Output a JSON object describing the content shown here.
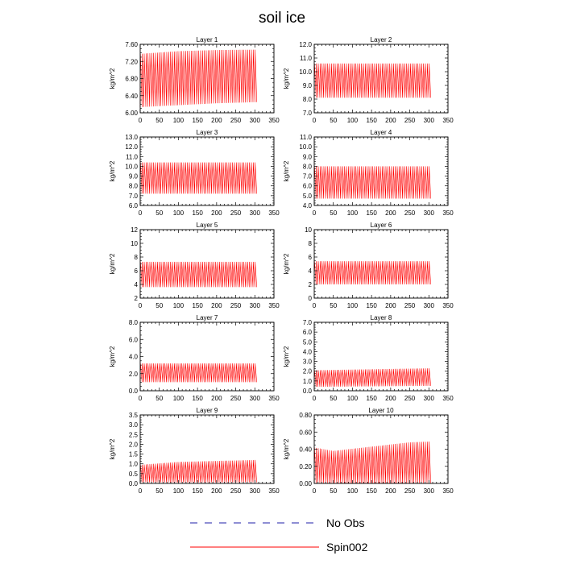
{
  "title": "soil ice",
  "colors": {
    "no_obs": "#1f1fa8",
    "spin": "#ff0000",
    "axis": "#000000"
  },
  "legend": [
    {
      "label": "No Obs",
      "style": "dashed",
      "color": "#1f1fa8"
    },
    {
      "label": "Spin002",
      "style": "solid",
      "color": "#ff0000"
    }
  ],
  "chart_data": [
    {
      "type": "line",
      "title": "Layer 1",
      "ylabel": "kg/m^2",
      "xlim": [
        0,
        350
      ],
      "ylim": [
        6.0,
        7.8
      ],
      "xticks": [
        "0",
        "50",
        "100",
        "150",
        "200",
        "250",
        "300",
        "350"
      ],
      "yticks": [
        "6.00",
        "6.40",
        "6.80",
        "7.20",
        "7.60"
      ],
      "series": [
        {
          "name": "Spin002",
          "x_start": 0,
          "x_end": 305,
          "cycles": 62,
          "upper": [
            [
              0,
              7.55
            ],
            [
              100,
              7.62
            ],
            [
              200,
              7.65
            ],
            [
              305,
              7.66
            ]
          ],
          "lower": [
            [
              0,
              6.15
            ],
            [
              100,
              6.2
            ],
            [
              200,
              6.25
            ],
            [
              305,
              6.28
            ]
          ]
        }
      ]
    },
    {
      "type": "line",
      "title": "Layer 2",
      "ylabel": "kg/m^2",
      "xlim": [
        0,
        350
      ],
      "ylim": [
        7.0,
        12.0
      ],
      "xticks": [
        "0",
        "50",
        "100",
        "150",
        "200",
        "250",
        "300",
        "350"
      ],
      "yticks": [
        "7.0",
        "8.0",
        "9.0",
        "10.0",
        "11.0",
        "12.0"
      ],
      "series": [
        {
          "name": "Spin002",
          "x_start": 0,
          "x_end": 305,
          "cycles": 62,
          "upper": [
            [
              0,
              10.6
            ],
            [
              305,
              10.6
            ]
          ],
          "lower": [
            [
              0,
              8.1
            ],
            [
              305,
              8.1
            ]
          ]
        }
      ]
    },
    {
      "type": "line",
      "title": "Layer 3",
      "ylabel": "kg/m^2",
      "xlim": [
        0,
        350
      ],
      "ylim": [
        6.0,
        13.0
      ],
      "xticks": [
        "0",
        "50",
        "100",
        "150",
        "200",
        "250",
        "300",
        "350"
      ],
      "yticks": [
        "6.0",
        "7.0",
        "8.0",
        "9.0",
        "10.0",
        "11.0",
        "12.0",
        "13.0"
      ],
      "series": [
        {
          "name": "Spin002",
          "x_start": 0,
          "x_end": 305,
          "cycles": 62,
          "upper": [
            [
              0,
              10.4
            ],
            [
              305,
              10.4
            ]
          ],
          "lower": [
            [
              0,
              7.2
            ],
            [
              305,
              7.2
            ]
          ]
        }
      ]
    },
    {
      "type": "line",
      "title": "Layer 4",
      "ylabel": "kg/m^2",
      "xlim": [
        0,
        350
      ],
      "ylim": [
        4.0,
        11.0
      ],
      "xticks": [
        "0",
        "50",
        "100",
        "150",
        "200",
        "250",
        "300",
        "350"
      ],
      "yticks": [
        "4.0",
        "5.0",
        "6.0",
        "7.0",
        "8.0",
        "9.0",
        "10.0",
        "11.0"
      ],
      "series": [
        {
          "name": "Spin002",
          "x_start": 0,
          "x_end": 305,
          "cycles": 62,
          "upper": [
            [
              0,
              8.0
            ],
            [
              305,
              8.0
            ]
          ],
          "lower": [
            [
              0,
              4.7
            ],
            [
              305,
              4.7
            ]
          ]
        }
      ]
    },
    {
      "type": "line",
      "title": "Layer 5",
      "ylabel": "kg/m^2",
      "xlim": [
        0,
        350
      ],
      "ylim": [
        2,
        12
      ],
      "xticks": [
        "0",
        "50",
        "100",
        "150",
        "200",
        "250",
        "300",
        "350"
      ],
      "yticks": [
        "2",
        "4",
        "6",
        "8",
        "10",
        "12"
      ],
      "series": [
        {
          "name": "Spin002",
          "x_start": 0,
          "x_end": 305,
          "cycles": 62,
          "upper": [
            [
              0,
              7.3
            ],
            [
              305,
              7.3
            ]
          ],
          "lower": [
            [
              0,
              3.6
            ],
            [
              305,
              3.6
            ]
          ]
        }
      ]
    },
    {
      "type": "line",
      "title": "Layer 6",
      "ylabel": "kg/m^2",
      "xlim": [
        0,
        350
      ],
      "ylim": [
        0,
        10
      ],
      "xticks": [
        "0",
        "50",
        "100",
        "150",
        "200",
        "250",
        "300",
        "350"
      ],
      "yticks": [
        "0",
        "2",
        "4",
        "6",
        "8",
        "10"
      ],
      "series": [
        {
          "name": "Spin002",
          "x_start": 0,
          "x_end": 305,
          "cycles": 62,
          "upper": [
            [
              0,
              5.4
            ],
            [
              305,
              5.4
            ]
          ],
          "lower": [
            [
              0,
              2.0
            ],
            [
              305,
              2.0
            ]
          ]
        }
      ]
    },
    {
      "type": "line",
      "title": "Layer 7",
      "ylabel": "kg/m^2",
      "xlim": [
        0,
        350
      ],
      "ylim": [
        0.0,
        8.0
      ],
      "xticks": [
        "0",
        "50",
        "100",
        "150",
        "200",
        "250",
        "300",
        "350"
      ],
      "yticks": [
        "0.0",
        "2.0",
        "4.0",
        "6.0",
        "8.0"
      ],
      "series": [
        {
          "name": "Spin002",
          "x_start": 0,
          "x_end": 305,
          "cycles": 62,
          "upper": [
            [
              0,
              3.2
            ],
            [
              305,
              3.2
            ]
          ],
          "lower": [
            [
              0,
              1.0
            ],
            [
              305,
              1.0
            ]
          ]
        }
      ]
    },
    {
      "type": "line",
      "title": "Layer 8",
      "ylabel": "kg/m^2",
      "xlim": [
        0,
        350
      ],
      "ylim": [
        0.0,
        7.0
      ],
      "xticks": [
        "0",
        "50",
        "100",
        "150",
        "200",
        "250",
        "300",
        "350"
      ],
      "yticks": [
        "0.0",
        "1.0",
        "2.0",
        "3.0",
        "4.0",
        "5.0",
        "6.0",
        "7.0"
      ],
      "series": [
        {
          "name": "Spin002",
          "x_start": 0,
          "x_end": 305,
          "cycles": 62,
          "upper": [
            [
              0,
              2.1
            ],
            [
              305,
              2.3
            ]
          ],
          "lower": [
            [
              0,
              0.4
            ],
            [
              305,
              0.5
            ]
          ]
        }
      ]
    },
    {
      "type": "line",
      "title": "Layer 9",
      "ylabel": "kg/m^2",
      "xlim": [
        0,
        350
      ],
      "ylim": [
        0.0,
        3.5
      ],
      "xticks": [
        "0",
        "50",
        "100",
        "150",
        "200",
        "250",
        "300",
        "350"
      ],
      "yticks": [
        "0.0",
        "0.5",
        "1.0",
        "1.5",
        "2.0",
        "2.5",
        "3.0",
        "3.5"
      ],
      "series": [
        {
          "name": "Spin002",
          "x_start": 0,
          "x_end": 305,
          "cycles": 62,
          "upper": [
            [
              0,
              0.95
            ],
            [
              100,
              1.1
            ],
            [
              200,
              1.15
            ],
            [
              305,
              1.2
            ]
          ],
          "lower": [
            [
              0,
              0.05
            ],
            [
              305,
              0.05
            ]
          ]
        }
      ]
    },
    {
      "type": "line",
      "title": "Layer 10",
      "ylabel": "kg/m^2",
      "xlim": [
        0,
        350
      ],
      "ylim": [
        0.0,
        0.8
      ],
      "xticks": [
        "0",
        "50",
        "100",
        "150",
        "200",
        "250",
        "300",
        "350"
      ],
      "yticks": [
        "0.00",
        "0.20",
        "0.40",
        "0.60",
        "0.80"
      ],
      "series": [
        {
          "name": "Spin002",
          "x_start": 0,
          "x_end": 305,
          "cycles": 62,
          "upper": [
            [
              0,
              0.42
            ],
            [
              50,
              0.38
            ],
            [
              150,
              0.43
            ],
            [
              250,
              0.48
            ],
            [
              305,
              0.49
            ]
          ],
          "lower": [
            [
              0,
              0.0
            ],
            [
              305,
              0.0
            ]
          ]
        }
      ]
    }
  ]
}
